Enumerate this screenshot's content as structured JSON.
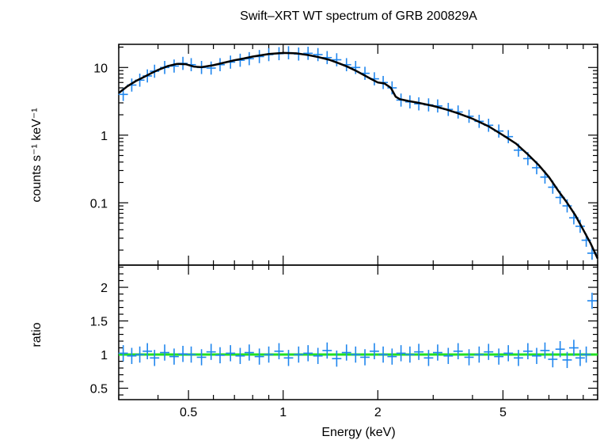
{
  "chart_data": {
    "type": "scatter",
    "title": "Swift–XRT WT spectrum of GRB 200829A",
    "xlabel": "Energy (keV)",
    "x_scale": "log",
    "xlim": [
      0.3,
      10
    ],
    "x_ticks": [
      {
        "value": 0.5,
        "label": "0.5"
      },
      {
        "value": 1,
        "label": "1"
      },
      {
        "value": 2,
        "label": "2"
      },
      {
        "value": 5,
        "label": "5"
      }
    ],
    "colors": {
      "data": "#1f86ee",
      "model": "#000000",
      "unity_line": "#22e022"
    },
    "panels": [
      {
        "name": "spectrum",
        "ylabel": "counts s⁻¹ keV⁻¹",
        "y_scale": "log",
        "ylim": [
          0.012,
          22
        ],
        "y_ticks": [
          {
            "value": 10,
            "label": "10"
          },
          {
            "value": 1,
            "label": "1"
          },
          {
            "value": 0.1,
            "label": "0.1"
          }
        ],
        "series": [
          {
            "kind": "data",
            "x": [
              0.31,
              0.33,
              0.35,
              0.37,
              0.39,
              0.42,
              0.45,
              0.48,
              0.51,
              0.55,
              0.59,
              0.63,
              0.68,
              0.73,
              0.78,
              0.84,
              0.9,
              0.97,
              1.04,
              1.12,
              1.2,
              1.29,
              1.38,
              1.48,
              1.59,
              1.7,
              1.82,
              1.95,
              2.08,
              2.22,
              2.37,
              2.53,
              2.7,
              2.9,
              3.1,
              3.35,
              3.6,
              3.9,
              4.2,
              4.5,
              4.85,
              5.2,
              5.6,
              6.0,
              6.4,
              6.8,
              7.2,
              7.6,
              8.0,
              8.4,
              8.8,
              9.2,
              9.6
            ],
            "y": [
              4.0,
              5.5,
              6.5,
              7.5,
              8.8,
              10.0,
              10.5,
              11.5,
              11.0,
              10.0,
              9.8,
              11.0,
              12.0,
              12.8,
              13.5,
              14.5,
              15.5,
              16.0,
              16.5,
              15.8,
              16.2,
              15.5,
              14.0,
              13.0,
              11.0,
              10.0,
              8.2,
              6.8,
              6.0,
              5.0,
              3.3,
              3.1,
              2.9,
              2.8,
              2.7,
              2.4,
              2.2,
              1.9,
              1.6,
              1.4,
              1.15,
              0.95,
              0.6,
              0.45,
              0.33,
              0.24,
              0.17,
              0.12,
              0.09,
              0.06,
              0.045,
              0.028,
              0.018
            ]
          },
          {
            "kind": "model",
            "x": [
              0.3,
              0.32,
              0.34,
              0.36,
              0.38,
              0.4,
              0.43,
              0.46,
              0.49,
              0.52,
              0.55,
              0.6,
              0.65,
              0.7,
              0.75,
              0.8,
              0.9,
              1.0,
              1.1,
              1.2,
              1.3,
              1.4,
              1.5,
              1.6,
              1.7,
              1.8,
              1.9,
              2.0,
              2.1,
              2.2,
              2.28,
              2.35,
              2.5,
              2.7,
              3.0,
              3.3,
              3.6,
              4.0,
              4.5,
              5.0,
              5.5,
              6.0,
              6.5,
              7.0,
              7.5,
              8.0,
              8.5,
              9.0,
              9.5,
              10.0
            ],
            "y": [
              4.2,
              5.3,
              6.3,
              7.2,
              8.2,
              9.2,
              10.5,
              11.3,
              11.2,
              10.3,
              10.1,
              10.8,
              11.8,
              12.8,
              13.6,
              14.5,
              15.8,
              16.4,
              16.2,
              15.3,
              14.2,
              13.0,
              11.6,
              10.3,
              9.0,
              7.8,
              6.8,
              6.0,
              5.8,
              5.0,
              3.7,
              3.4,
              3.2,
              3.0,
              2.7,
              2.4,
              2.1,
              1.75,
              1.35,
              1.0,
              0.75,
              0.52,
              0.36,
              0.24,
              0.15,
              0.1,
              0.065,
              0.04,
              0.025,
              0.015
            ]
          }
        ]
      },
      {
        "name": "ratio",
        "ylabel": "ratio",
        "y_scale": "linear",
        "ylim": [
          0.33,
          2.33
        ],
        "y_ticks": [
          {
            "value": 2,
            "label": "2"
          },
          {
            "value": 1.5,
            "label": "1.5"
          },
          {
            "value": 1,
            "label": "1"
          },
          {
            "value": 0.5,
            "label": "0.5"
          }
        ],
        "unity_line": 1,
        "series": [
          {
            "kind": "data",
            "x": [
              0.31,
              0.33,
              0.35,
              0.37,
              0.39,
              0.42,
              0.45,
              0.48,
              0.51,
              0.55,
              0.59,
              0.63,
              0.68,
              0.73,
              0.78,
              0.84,
              0.9,
              0.97,
              1.04,
              1.12,
              1.2,
              1.29,
              1.38,
              1.48,
              1.59,
              1.7,
              1.82,
              1.95,
              2.08,
              2.22,
              2.37,
              2.53,
              2.7,
              2.9,
              3.1,
              3.35,
              3.6,
              3.9,
              4.2,
              4.5,
              4.85,
              5.2,
              5.6,
              6.0,
              6.4,
              6.8,
              7.2,
              7.6,
              8.0,
              8.4,
              8.8,
              9.2,
              9.6
            ],
            "y": [
              1.02,
              0.98,
              1.0,
              1.05,
              0.95,
              1.03,
              0.97,
              1.01,
              1.0,
              0.96,
              1.04,
              0.99,
              1.02,
              0.98,
              1.03,
              0.97,
              1.0,
              1.05,
              0.95,
              1.0,
              1.02,
              0.98,
              1.06,
              0.94,
              1.03,
              1.0,
              0.96,
              1.05,
              1.0,
              0.97,
              1.02,
              1.0,
              1.04,
              0.95,
              1.03,
              0.98,
              1.05,
              0.96,
              1.0,
              1.04,
              0.97,
              1.02,
              0.95,
              1.05,
              0.98,
              1.06,
              0.93,
              1.08,
              0.92,
              1.1,
              0.95,
              1.0,
              1.8
            ]
          }
        ]
      }
    ]
  }
}
